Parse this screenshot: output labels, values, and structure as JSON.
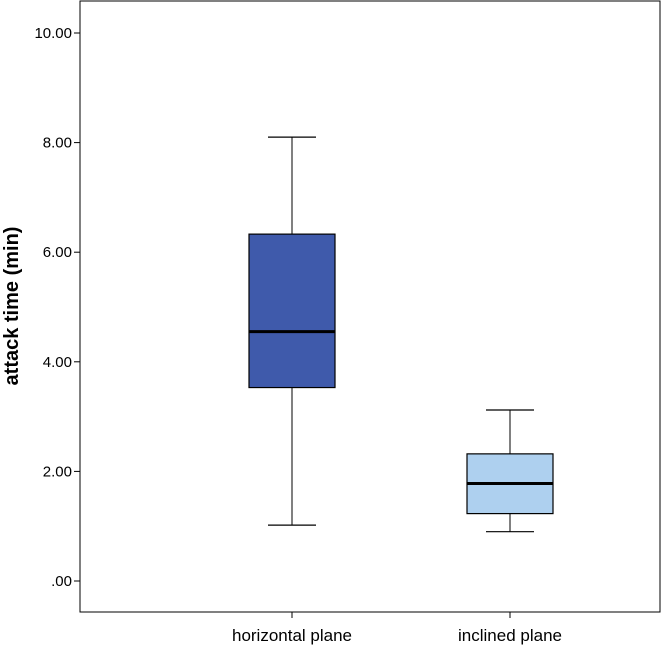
{
  "chart_data": {
    "type": "boxplot",
    "ylabel": "attack time (min)",
    "xlabel": "",
    "ylim": [
      -0.5,
      10.6
    ],
    "yticks": [
      0,
      2,
      4,
      6,
      8,
      10
    ],
    "ytick_labels": [
      ".00",
      "2.00",
      "4.00",
      "6.00",
      "8.00",
      "10.00"
    ],
    "grid": false,
    "categories": [
      "horizontal plane",
      "inclined plane"
    ],
    "boxes": [
      {
        "category": "horizontal plane",
        "whisker_low": 1.02,
        "q1": 3.53,
        "median": 4.55,
        "q3": 6.33,
        "whisker_high": 8.1,
        "color": "#3f5aab"
      },
      {
        "category": "inclined plane",
        "whisker_low": 0.9,
        "q1": 1.23,
        "median": 1.78,
        "q3": 2.32,
        "whisker_high": 3.12,
        "color": "#aed0ef"
      }
    ]
  }
}
